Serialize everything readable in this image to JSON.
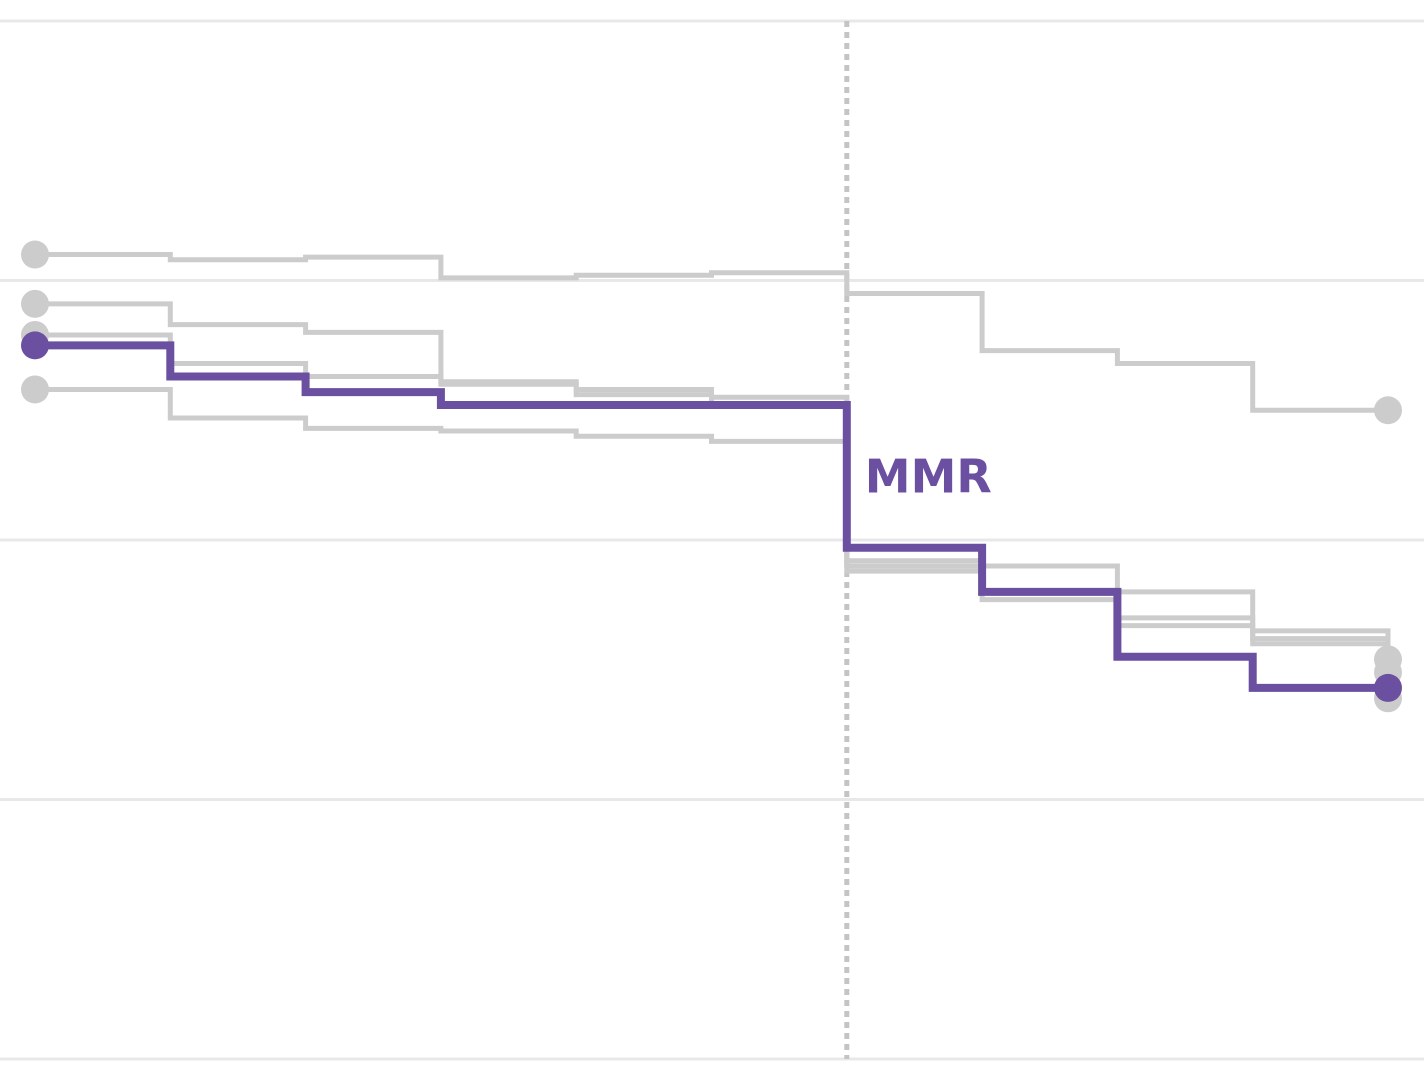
{
  "chart_data": {
    "type": "line",
    "x": [
      0,
      1,
      2,
      3,
      4,
      5,
      6,
      7,
      8,
      9,
      10
    ],
    "ylim": [
      0,
      4
    ],
    "grid": true,
    "highlight_color": "#6b4fa0",
    "muted_color": "#cccccc",
    "marker_x": 6,
    "series": [
      {
        "name": "",
        "highlight": false,
        "values": [
          3.1,
          3.08,
          3.09,
          3.01,
          3.02,
          3.03,
          2.95,
          2.73,
          2.68,
          2.5,
          2.5
        ]
      },
      {
        "name": "",
        "highlight": false,
        "values": [
          2.91,
          2.83,
          2.8,
          2.6,
          2.56,
          2.55,
          1.92,
          1.9,
          1.8,
          1.65,
          1.49
        ]
      },
      {
        "name": "",
        "highlight": false,
        "values": [
          2.79,
          2.68,
          2.63,
          2.61,
          2.58,
          2.52,
          1.9,
          1.8,
          1.7,
          1.6,
          1.54
        ]
      },
      {
        "name": "",
        "highlight": false,
        "values": [
          2.58,
          2.47,
          2.43,
          2.42,
          2.4,
          2.38,
          1.88,
          1.77,
          1.67,
          1.62,
          1.39
        ]
      },
      {
        "name": "MMR",
        "highlight": true,
        "values": [
          2.75,
          2.63,
          2.57,
          2.52,
          2.52,
          2.52,
          1.97,
          1.8,
          1.55,
          1.43,
          1.43
        ]
      }
    ]
  }
}
